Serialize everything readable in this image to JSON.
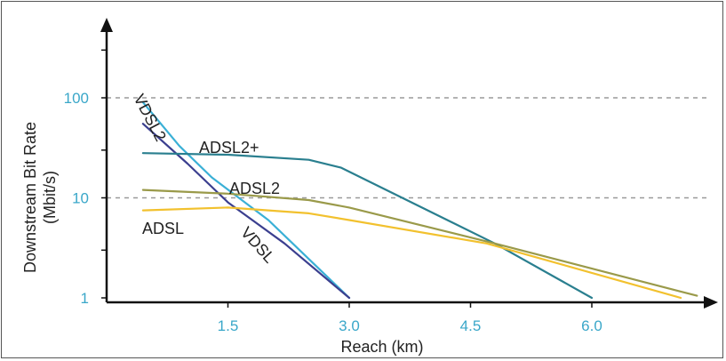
{
  "chart_data": {
    "type": "line",
    "title": "",
    "xlabel": "Reach (km)",
    "ylabel": "Downstream Bit Rate (Mbit/s)",
    "y_scale": "log",
    "xlim": [
      0,
      7.4
    ],
    "ylim": [
      1,
      100
    ],
    "x_ticks": [
      "1.5",
      "3.0",
      "4.5",
      "6.0"
    ],
    "y_ticks": [
      "1",
      "10",
      "100"
    ],
    "grid": "dashed horizontal lines at 10 and 100",
    "colors": {
      "tick_labels": "#3aa7c9",
      "axes": "#111111",
      "grid": "#9a9a9a"
    },
    "series": [
      {
        "name": "VDSL2",
        "color": "#3ab0d6",
        "points": [
          [
            0.45,
            90
          ],
          [
            0.9,
            33
          ],
          [
            1.3,
            16
          ],
          [
            2.0,
            6
          ],
          [
            3.0,
            1.0
          ]
        ]
      },
      {
        "name": "VDSL",
        "color": "#3b3f8f",
        "points": [
          [
            0.45,
            55
          ],
          [
            1.0,
            22
          ],
          [
            1.5,
            9
          ],
          [
            2.2,
            3.5
          ],
          [
            3.0,
            1.0
          ]
        ]
      },
      {
        "name": "ADSL2+",
        "color": "#2a7f8f",
        "points": [
          [
            0.45,
            28
          ],
          [
            1.5,
            27
          ],
          [
            2.5,
            24
          ],
          [
            2.9,
            20
          ],
          [
            4.8,
            3.5
          ],
          [
            6.0,
            1.0
          ]
        ]
      },
      {
        "name": "ADSL2",
        "color": "#9a9a4a",
        "points": [
          [
            0.45,
            12
          ],
          [
            1.5,
            11
          ],
          [
            2.5,
            9.5
          ],
          [
            3.0,
            8
          ],
          [
            4.8,
            3.5
          ],
          [
            7.3,
            1.05
          ]
        ]
      },
      {
        "name": "ADSL",
        "color": "#f2c12e",
        "points": [
          [
            0.45,
            7.5
          ],
          [
            1.5,
            8
          ],
          [
            2.5,
            7
          ],
          [
            3.0,
            6
          ],
          [
            4.7,
            3.5
          ],
          [
            7.1,
            1.0
          ]
        ]
      }
    ]
  }
}
